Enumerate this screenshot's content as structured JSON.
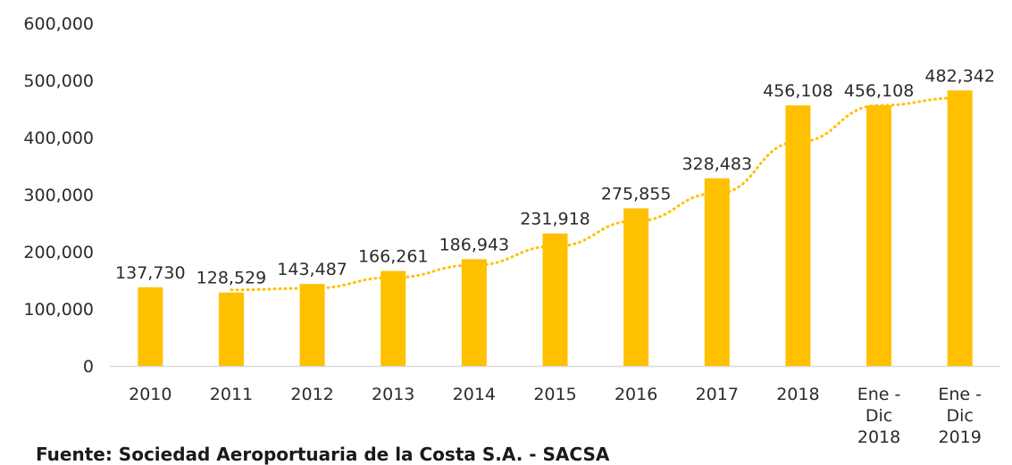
{
  "chart_data": {
    "type": "bar",
    "categories": [
      "2010",
      "2011",
      "2012",
      "2013",
      "2014",
      "2015",
      "2016",
      "2017",
      "2018",
      "Ene - Dic 2018",
      "Ene - Dic 2019"
    ],
    "category_lines": [
      [
        "2010"
      ],
      [
        "2011"
      ],
      [
        "2012"
      ],
      [
        "2013"
      ],
      [
        "2014"
      ],
      [
        "2015"
      ],
      [
        "2016"
      ],
      [
        "2017"
      ],
      [
        "2018"
      ],
      [
        "Ene -",
        "Dic",
        "2018"
      ],
      [
        "Ene -",
        "Dic",
        "2019"
      ]
    ],
    "values": [
      137730,
      128529,
      143487,
      166261,
      186943,
      231918,
      275855,
      328483,
      456108,
      456108,
      482342
    ],
    "value_labels": [
      "137,730",
      "128,529",
      "143,487",
      "166,261",
      "186,943",
      "231,918",
      "275,855",
      "328,483",
      "456,108",
      "456,108",
      "482,342"
    ],
    "trendline": {
      "type": "moving-average",
      "style": "dotted",
      "start_index": 1,
      "period": 2
    },
    "ylim": [
      0,
      600000
    ],
    "yticks": [
      0,
      100000,
      200000,
      300000,
      400000,
      500000,
      600000
    ],
    "ytick_labels": [
      "0",
      "100,000",
      "200,000",
      "300,000",
      "400,000",
      "500,000",
      "600,000"
    ],
    "title": "",
    "xlabel": "",
    "ylabel": "",
    "grid": false,
    "legend": "none",
    "colors": {
      "bar": "#FFC000",
      "trendline": "#FFC000",
      "axis": "#d9d9d9",
      "text": "#2b2b2b"
    }
  },
  "footer": {
    "source": "Fuente: Sociedad Aeroportuaria de la Costa S.A. - SACSA"
  }
}
